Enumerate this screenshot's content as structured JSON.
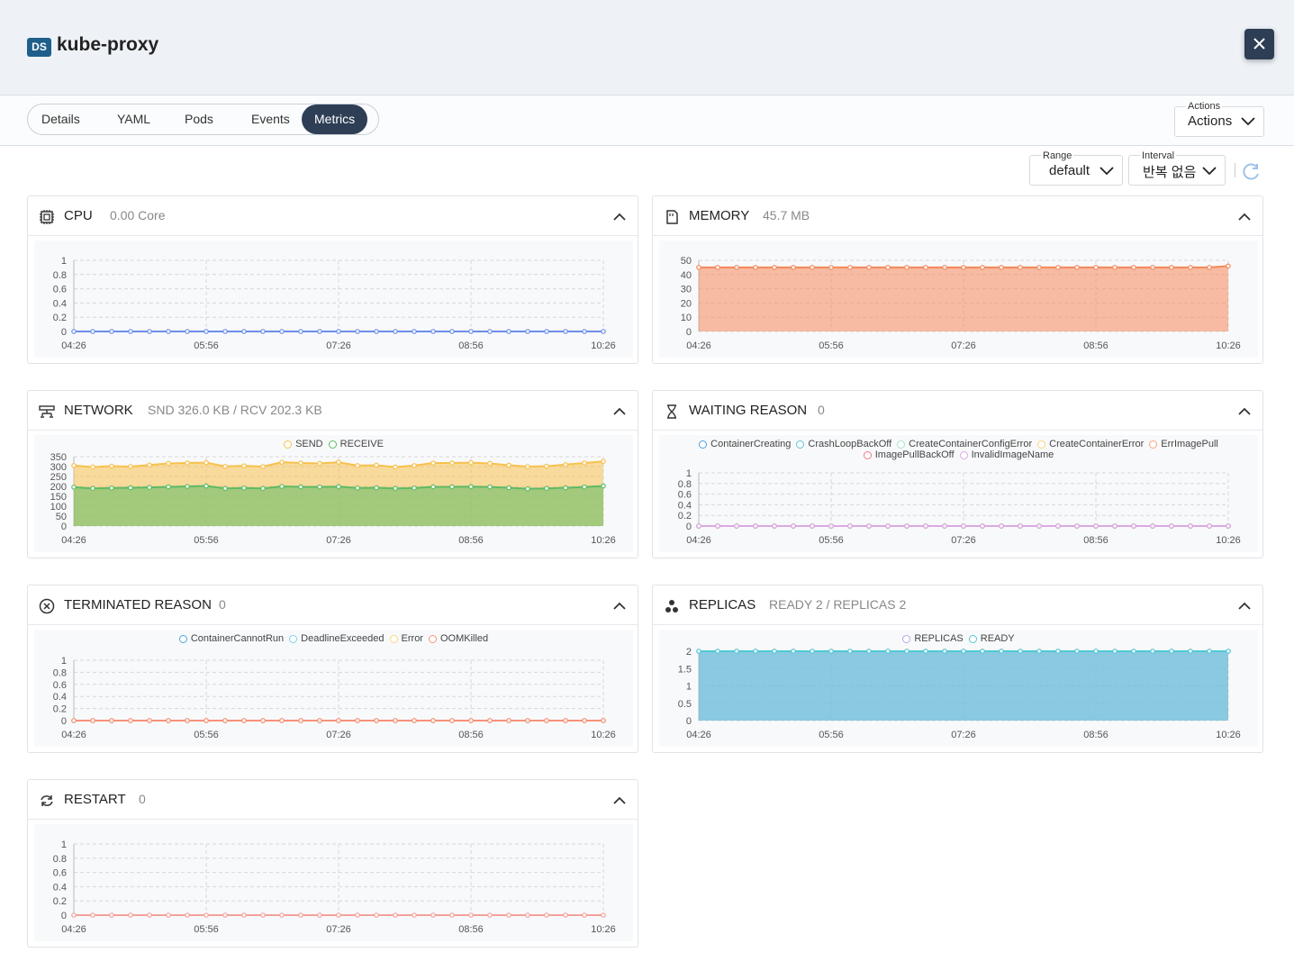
{
  "header": {
    "badge": "DS",
    "title": "kube-proxy"
  },
  "tabs": [
    "Details",
    "YAML",
    "Pods",
    "Events",
    "Metrics"
  ],
  "active": "Metrics",
  "actions": {
    "label": "Actions",
    "button": "Actions"
  },
  "range": {
    "label": "Range",
    "value": "default"
  },
  "interval": {
    "label": "Interval",
    "value": "반복 없음"
  },
  "panels": [
    {
      "title": "CPU",
      "summary": "0.00 Core",
      "chart": {
        "type": "line",
        "categories": [
          "04:26",
          null,
          null,
          null,
          null,
          null,
          null,
          "05:56",
          null,
          null,
          null,
          null,
          null,
          null,
          "07:26",
          null,
          null,
          null,
          null,
          null,
          null,
          "08:56",
          null,
          null,
          null,
          null,
          null,
          null,
          "10:26"
        ],
        "values": [
          0,
          0,
          0,
          0,
          0,
          0,
          0,
          0,
          0,
          0,
          0,
          0,
          0,
          0,
          0,
          0,
          0,
          0,
          0,
          0,
          0,
          0,
          0,
          0,
          0,
          0,
          0,
          0,
          0
        ],
        "color": "#6c8ee8",
        "ylim": [
          0,
          1
        ],
        "yticks": [
          0,
          0.2,
          0.4,
          0.6,
          0.8,
          1
        ],
        "grid": true
      }
    },
    {
      "title": "MEMORY",
      "summary": "45.7 MB",
      "chart": {
        "type": "area",
        "categories": [
          "04:26",
          null,
          null,
          null,
          null,
          null,
          null,
          "05:56",
          null,
          null,
          null,
          null,
          null,
          null,
          "07:26",
          null,
          null,
          null,
          null,
          null,
          null,
          "08:56",
          null,
          null,
          null,
          null,
          null,
          null,
          "10:26"
        ],
        "values": [
          45,
          45,
          45,
          45,
          45,
          45,
          45,
          45,
          45,
          45,
          45,
          45,
          45,
          45,
          45,
          45,
          45,
          45,
          45,
          45,
          45,
          45,
          45,
          45,
          45,
          45,
          45,
          45,
          46
        ],
        "color": "#f4895a",
        "ylim": [
          0,
          50
        ],
        "yticks": [
          0,
          10,
          20,
          30,
          40,
          50
        ],
        "grid": true
      }
    },
    {
      "title": "NETWORK",
      "summary": "SND 326.0 KB / RCV 202.3 KB",
      "chart": {
        "type": "area",
        "categories": [
          "04:26",
          null,
          null,
          null,
          null,
          null,
          null,
          "05:56",
          null,
          null,
          null,
          null,
          null,
          null,
          "07:26",
          null,
          null,
          null,
          null,
          null,
          null,
          "08:56",
          null,
          null,
          null,
          null,
          null,
          null,
          "10:26"
        ],
        "series": [
          {
            "name": "SEND",
            "color": "#f7c14e",
            "values": [
              305,
              298,
              302,
              300,
              308,
              316,
              318,
              320,
              301,
              304,
              300,
              322,
              318,
              316,
              322,
              305,
              307,
              298,
              305,
              318,
              318,
              320,
              316,
              307,
              300,
              302,
              310,
              318,
              326
            ]
          },
          {
            "name": "RECEIVE",
            "color": "#5dbb63",
            "values": [
              196,
              190,
              192,
              193,
              195,
              198,
              200,
              202,
              190,
              192,
              190,
              200,
              198,
              197,
              199,
              192,
              193,
              190,
              192,
              198,
              198,
              199,
              197,
              193,
              188,
              190,
              193,
              197,
              202
            ]
          }
        ],
        "ylim": [
          0,
          350
        ],
        "yticks": [
          0,
          50,
          100,
          150,
          200,
          250,
          300,
          350
        ],
        "grid": true,
        "legend": "top"
      }
    },
    {
      "title": "WAITING REASON",
      "summary": "0",
      "chart": {
        "type": "line",
        "categories": [
          "04:26",
          null,
          null,
          null,
          null,
          null,
          null,
          "05:56",
          null,
          null,
          null,
          null,
          null,
          null,
          "07:26",
          null,
          null,
          null,
          null,
          null,
          null,
          "08:56",
          null,
          null,
          null,
          null,
          null,
          null,
          "10:26"
        ],
        "series": [
          {
            "name": "ContainerCreating",
            "color": "#4e9fe0",
            "values": [
              0,
              0,
              0,
              0,
              0,
              0,
              0,
              0,
              0,
              0,
              0,
              0,
              0,
              0,
              0,
              0,
              0,
              0,
              0,
              0,
              0,
              0,
              0,
              0,
              0,
              0,
              0,
              0,
              0
            ]
          },
          {
            "name": "CrashLoopBackOff",
            "color": "#5bc6e0",
            "values": [
              0,
              0,
              0,
              0,
              0,
              0,
              0,
              0,
              0,
              0,
              0,
              0,
              0,
              0,
              0,
              0,
              0,
              0,
              0,
              0,
              0,
              0,
              0,
              0,
              0,
              0,
              0,
              0,
              0
            ]
          },
          {
            "name": "CreateContainerConfigError",
            "color": "#a6e3c8",
            "values": [
              0,
              0,
              0,
              0,
              0,
              0,
              0,
              0,
              0,
              0,
              0,
              0,
              0,
              0,
              0,
              0,
              0,
              0,
              0,
              0,
              0,
              0,
              0,
              0,
              0,
              0,
              0,
              0,
              0
            ]
          },
          {
            "name": "CreateContainerError",
            "color": "#fbd77a",
            "values": [
              0,
              0,
              0,
              0,
              0,
              0,
              0,
              0,
              0,
              0,
              0,
              0,
              0,
              0,
              0,
              0,
              0,
              0,
              0,
              0,
              0,
              0,
              0,
              0,
              0,
              0,
              0,
              0,
              0
            ]
          },
          {
            "name": "ErrImagePull",
            "color": "#f8a579",
            "values": [
              0,
              0,
              0,
              0,
              0,
              0,
              0,
              0,
              0,
              0,
              0,
              0,
              0,
              0,
              0,
              0,
              0,
              0,
              0,
              0,
              0,
              0,
              0,
              0,
              0,
              0,
              0,
              0,
              0
            ]
          },
          {
            "name": "ImagePullBackOff",
            "color": "#f27a8a",
            "values": [
              0,
              0,
              0,
              0,
              0,
              0,
              0,
              0,
              0,
              0,
              0,
              0,
              0,
              0,
              0,
              0,
              0,
              0,
              0,
              0,
              0,
              0,
              0,
              0,
              0,
              0,
              0,
              0,
              0
            ]
          },
          {
            "name": "InvalidImageName",
            "color": "#dba8e4",
            "values": [
              0,
              0,
              0,
              0,
              0,
              0,
              0,
              0,
              0,
              0,
              0,
              0,
              0,
              0,
              0,
              0,
              0,
              0,
              0,
              0,
              0,
              0,
              0,
              0,
              0,
              0,
              0,
              0,
              0
            ]
          }
        ],
        "ylim": [
          0,
          1
        ],
        "yticks": [
          0,
          0.2,
          0.4,
          0.6,
          0.8,
          1
        ],
        "grid": true,
        "legend": "top"
      }
    },
    {
      "title": "TERMINATED REASON",
      "summary": "0",
      "chart": {
        "type": "line",
        "categories": [
          "04:26",
          null,
          null,
          null,
          null,
          null,
          null,
          "05:56",
          null,
          null,
          null,
          null,
          null,
          null,
          "07:26",
          null,
          null,
          null,
          null,
          null,
          null,
          "08:56",
          null,
          null,
          null,
          null,
          null,
          null,
          "10:26"
        ],
        "series": [
          {
            "name": "ContainerCannotRun",
            "color": "#4ea6e0",
            "values": [
              0,
              0,
              0,
              0,
              0,
              0,
              0,
              0,
              0,
              0,
              0,
              0,
              0,
              0,
              0,
              0,
              0,
              0,
              0,
              0,
              0,
              0,
              0,
              0,
              0,
              0,
              0,
              0,
              0
            ]
          },
          {
            "name": "DeadlineExceeded",
            "color": "#7dd3e8",
            "values": [
              0,
              0,
              0,
              0,
              0,
              0,
              0,
              0,
              0,
              0,
              0,
              0,
              0,
              0,
              0,
              0,
              0,
              0,
              0,
              0,
              0,
              0,
              0,
              0,
              0,
              0,
              0,
              0,
              0
            ]
          },
          {
            "name": "Error",
            "color": "#fbd77a",
            "values": [
              0,
              0,
              0,
              0,
              0,
              0,
              0,
              0,
              0,
              0,
              0,
              0,
              0,
              0,
              0,
              0,
              0,
              0,
              0,
              0,
              0,
              0,
              0,
              0,
              0,
              0,
              0,
              0,
              0
            ]
          },
          {
            "name": "OOMKilled",
            "color": "#f8927a",
            "values": [
              0,
              0,
              0,
              0,
              0,
              0,
              0,
              0,
              0,
              0,
              0,
              0,
              0,
              0,
              0,
              0,
              0,
              0,
              0,
              0,
              0,
              0,
              0,
              0,
              0,
              0,
              0,
              0,
              0
            ]
          }
        ],
        "ylim": [
          0,
          1
        ],
        "yticks": [
          0,
          0.2,
          0.4,
          0.6,
          0.8,
          1
        ],
        "grid": true,
        "legend": "top"
      }
    },
    {
      "title": "REPLICAS",
      "summary": "READY 2 / REPLICAS 2",
      "chart": {
        "type": "area",
        "categories": [
          "04:26",
          null,
          null,
          null,
          null,
          null,
          null,
          "05:56",
          null,
          null,
          null,
          null,
          null,
          null,
          "07:26",
          null,
          null,
          null,
          null,
          null,
          null,
          "08:56",
          null,
          null,
          null,
          null,
          null,
          null,
          "10:26"
        ],
        "series": [
          {
            "name": "REPLICAS",
            "color": "#b9a3e8",
            "values": [
              2,
              2,
              2,
              2,
              2,
              2,
              2,
              2,
              2,
              2,
              2,
              2,
              2,
              2,
              2,
              2,
              2,
              2,
              2,
              2,
              2,
              2,
              2,
              2,
              2,
              2,
              2,
              2,
              2
            ]
          },
          {
            "name": "READY",
            "color": "#4fc9d6",
            "values": [
              2,
              2,
              2,
              2,
              2,
              2,
              2,
              2,
              2,
              2,
              2,
              2,
              2,
              2,
              2,
              2,
              2,
              2,
              2,
              2,
              2,
              2,
              2,
              2,
              2,
              2,
              2,
              2,
              2
            ]
          }
        ],
        "ylim": [
          0,
          2
        ],
        "yticks": [
          0,
          0.5,
          1,
          1.5,
          2
        ],
        "grid": true,
        "legend": "top"
      }
    },
    {
      "title": "RESTART",
      "summary": "0",
      "chart": {
        "type": "line",
        "categories": [
          "04:26",
          null,
          null,
          null,
          null,
          null,
          null,
          "05:56",
          null,
          null,
          null,
          null,
          null,
          null,
          "07:26",
          null,
          null,
          null,
          null,
          null,
          null,
          "08:56",
          null,
          null,
          null,
          null,
          null,
          null,
          "10:26"
        ],
        "values": [
          0,
          0,
          0,
          0,
          0,
          0,
          0,
          0,
          0,
          0,
          0,
          0,
          0,
          0,
          0,
          0,
          0,
          0,
          0,
          0,
          0,
          0,
          0,
          0,
          0,
          0,
          0,
          0,
          0
        ],
        "color": "#f4a09a",
        "ylim": [
          0,
          1
        ],
        "yticks": [
          0,
          0.2,
          0.4,
          0.6,
          0.8,
          1
        ],
        "grid": true
      }
    }
  ]
}
